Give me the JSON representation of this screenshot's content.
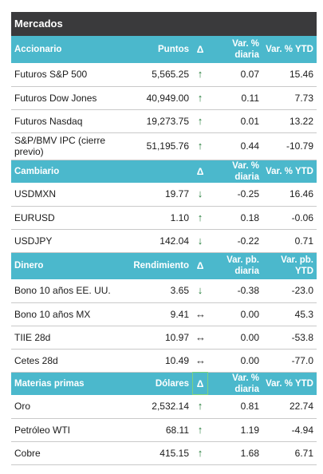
{
  "title": "Mercados",
  "colors": {
    "title_bg": "#3a3a3c",
    "header_bg": "#4bb8cc",
    "arrow": "#1f7a36"
  },
  "sections": [
    {
      "headers": [
        "Accionario",
        "Puntos",
        "Δ",
        "Var. % diaria",
        "Var. % YTD"
      ],
      "rows": [
        [
          "Futuros S&P 500",
          "5,565.25",
          "↑",
          "0.07",
          "15.46"
        ],
        [
          "Futuros Dow Jones",
          "40,949.00",
          "↑",
          "0.11",
          "7.73"
        ],
        [
          "Futuros Nasdaq",
          "19,273.75",
          "↑",
          "0.01",
          "13.22"
        ],
        [
          "S&P/BMV IPC (cierre previo)",
          "51,195.76",
          "↑",
          "0.44",
          "-10.79"
        ]
      ]
    },
    {
      "headers": [
        "Cambiario",
        "",
        "Δ",
        "Var. % diaria",
        "Var. % YTD"
      ],
      "rows": [
        [
          "USDMXN",
          "19.77",
          "↓",
          "-0.25",
          "16.46"
        ],
        [
          "EURUSD",
          "1.10",
          "↑",
          "0.18",
          "-0.06"
        ],
        [
          "USDJPY",
          "142.04",
          "↓",
          "-0.22",
          "0.71"
        ]
      ]
    },
    {
      "headers": [
        "Dinero",
        "Rendimiento",
        "Δ",
        "Var. pb. diaria",
        "Var. pb. YTD"
      ],
      "rows": [
        [
          "Bono 10 años EE. UU.",
          "3.65",
          "↓",
          "-0.38",
          "-23.0"
        ],
        [
          "Bono 10 años MX",
          "9.41",
          "↔",
          "0.00",
          "45.3"
        ],
        [
          "TIIE 28d",
          "10.97",
          "↔",
          "0.00",
          "-53.8"
        ],
        [
          "Cetes 28d",
          "10.49",
          "↔",
          "0.00",
          "-77.0"
        ]
      ]
    },
    {
      "headers": [
        "Materias primas",
        "Dólares",
        "Δ",
        "Var. % diaria",
        "Var. % YTD"
      ],
      "rows": [
        [
          "Oro",
          "2,532.14",
          "↑",
          "0.81",
          "22.74"
        ],
        [
          "Petróleo WTI",
          "68.11",
          "↑",
          "1.19",
          "-4.94"
        ],
        [
          "Cobre",
          "415.15",
          "↑",
          "1.68",
          "6.71"
        ]
      ]
    }
  ]
}
